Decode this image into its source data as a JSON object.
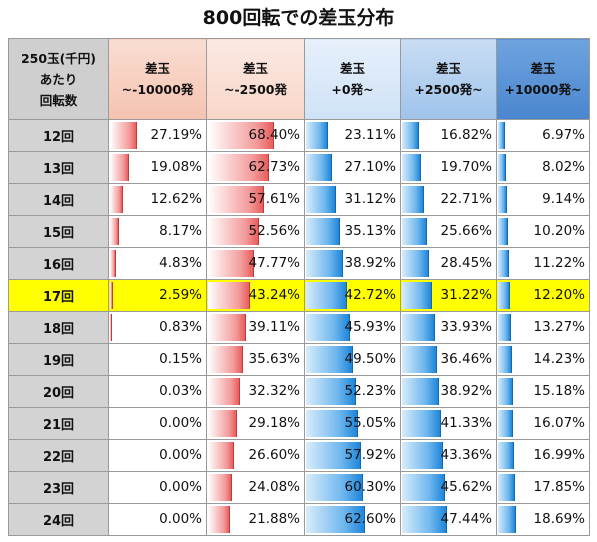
{
  "title": "800回転での差玉分布",
  "header": {
    "row_label": [
      "250玉(千円)",
      "あたり",
      "回転数"
    ],
    "columns": [
      [
        "差玉",
        "~-10000発"
      ],
      [
        "差玉",
        "~-2500発"
      ],
      [
        "差玉",
        "+0発~"
      ],
      [
        "差玉",
        "+2500発~"
      ],
      [
        "差玉",
        "+10000発~"
      ]
    ]
  },
  "colors": {
    "highlight": "#ffff00",
    "bar_negative": "#e85d5d",
    "bar_positive": "#1f86d9"
  },
  "rows": [
    {
      "label": "12回",
      "cells": [
        "27.19%",
        "68.40%",
        "23.11%",
        "16.82%",
        "6.97%"
      ]
    },
    {
      "label": "13回",
      "cells": [
        "19.08%",
        "62.73%",
        "27.10%",
        "19.70%",
        "8.02%"
      ]
    },
    {
      "label": "14回",
      "cells": [
        "12.62%",
        "57.61%",
        "31.12%",
        "22.71%",
        "9.14%"
      ]
    },
    {
      "label": "15回",
      "cells": [
        "8.17%",
        "52.56%",
        "35.13%",
        "25.66%",
        "10.20%"
      ]
    },
    {
      "label": "16回",
      "cells": [
        "4.83%",
        "47.77%",
        "38.92%",
        "28.45%",
        "11.22%"
      ]
    },
    {
      "label": "17回",
      "cells": [
        "2.59%",
        "43.24%",
        "42.72%",
        "31.22%",
        "12.20%"
      ],
      "highlight": true
    },
    {
      "label": "18回",
      "cells": [
        "0.83%",
        "39.11%",
        "45.93%",
        "33.93%",
        "13.27%"
      ]
    },
    {
      "label": "19回",
      "cells": [
        "0.15%",
        "35.63%",
        "49.50%",
        "36.46%",
        "14.23%"
      ]
    },
    {
      "label": "20回",
      "cells": [
        "0.03%",
        "32.32%",
        "52.23%",
        "38.92%",
        "15.18%"
      ]
    },
    {
      "label": "21回",
      "cells": [
        "0.00%",
        "29.18%",
        "55.05%",
        "41.33%",
        "16.07%"
      ]
    },
    {
      "label": "22回",
      "cells": [
        "0.00%",
        "26.60%",
        "57.92%",
        "43.36%",
        "16.99%"
      ]
    },
    {
      "label": "23回",
      "cells": [
        "0.00%",
        "24.08%",
        "60.30%",
        "45.62%",
        "17.85%"
      ]
    },
    {
      "label": "24回",
      "cells": [
        "0.00%",
        "21.88%",
        "62.60%",
        "47.44%",
        "18.69%"
      ]
    }
  ],
  "chart_data": {
    "type": "table",
    "title": "800回転での差玉分布",
    "row_header": "250玉(千円)あたり回転数",
    "categories": [
      "12回",
      "13回",
      "14回",
      "15回",
      "16回",
      "17回",
      "18回",
      "19回",
      "20回",
      "21回",
      "22回",
      "23回",
      "24回"
    ],
    "series": [
      {
        "name": "差玉~-10000発",
        "values": [
          27.19,
          19.08,
          12.62,
          8.17,
          4.83,
          2.59,
          0.83,
          0.15,
          0.03,
          0.0,
          0.0,
          0.0,
          0.0
        ]
      },
      {
        "name": "差玉~-2500発",
        "values": [
          68.4,
          62.73,
          57.61,
          52.56,
          47.77,
          43.24,
          39.11,
          35.63,
          32.32,
          29.18,
          26.6,
          24.08,
          21.88
        ]
      },
      {
        "name": "差玉+0発~",
        "values": [
          23.11,
          27.1,
          31.12,
          35.13,
          38.92,
          42.72,
          45.93,
          49.5,
          52.23,
          55.05,
          57.92,
          60.3,
          62.6
        ]
      },
      {
        "name": "差玉+2500発~",
        "values": [
          16.82,
          19.7,
          22.71,
          25.66,
          28.45,
          31.22,
          33.93,
          36.46,
          38.92,
          41.33,
          43.36,
          45.62,
          47.44
        ]
      },
      {
        "name": "差玉+10000発~",
        "values": [
          6.97,
          8.02,
          9.14,
          10.2,
          11.22,
          12.2,
          13.27,
          14.23,
          15.18,
          16.07,
          16.99,
          17.85,
          18.69
        ]
      }
    ],
    "unit": "%",
    "highlighted_row": "17回",
    "ylim": [
      0,
      100
    ]
  }
}
